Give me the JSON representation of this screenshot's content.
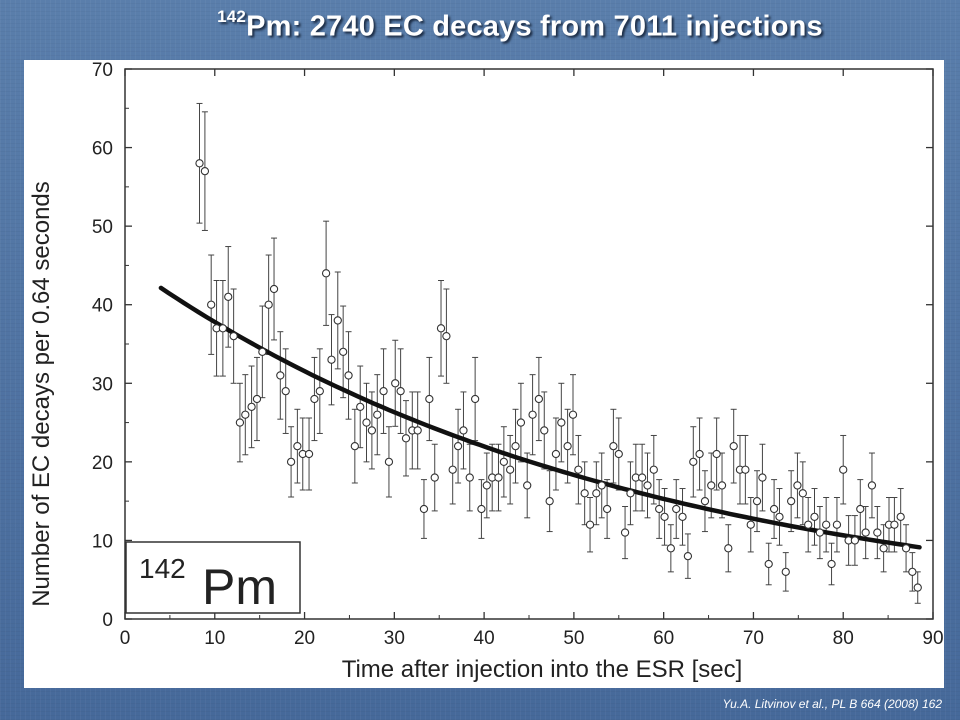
{
  "slide": {
    "title_superscript": "142",
    "title_main": "Pm: 2740 EC decays from 7011 injections",
    "citation": "Yu.A. Litvinov et al., PL B 664 (2008) 162"
  },
  "chart_data": {
    "type": "scatter",
    "xlabel": "Time after injection into the ESR [sec]",
    "ylabel": "Number of EC decays per 0.64 seconds",
    "xlim": [
      0,
      90
    ],
    "ylim": [
      0,
      70
    ],
    "x_ticks": [
      0,
      10,
      20,
      30,
      40,
      50,
      60,
      70,
      80,
      90
    ],
    "y_ticks": [
      0,
      10,
      20,
      30,
      40,
      50,
      60,
      70
    ],
    "inset_label": {
      "mass_number": "142",
      "element": "Pm"
    },
    "grid": false,
    "colors": {
      "points_fill": "#ffffff",
      "points_stroke": "#333333",
      "fit_line": "#111111",
      "slide_background": "#4d6f9c"
    },
    "series": [
      {
        "values_xy": [
          [
            8.3,
            58
          ],
          [
            8.9,
            57
          ],
          [
            9.6,
            40
          ],
          [
            10.2,
            37
          ],
          [
            10.9,
            37
          ],
          [
            11.5,
            41
          ],
          [
            12.1,
            36
          ],
          [
            12.8,
            25
          ],
          [
            13.4,
            26
          ],
          [
            14.1,
            27
          ],
          [
            14.7,
            28
          ],
          [
            15.3,
            34
          ],
          [
            16.0,
            40
          ],
          [
            16.6,
            42
          ],
          [
            17.3,
            31
          ],
          [
            17.9,
            29
          ],
          [
            18.5,
            20
          ],
          [
            19.2,
            22
          ],
          [
            19.8,
            21
          ],
          [
            20.5,
            21
          ],
          [
            21.1,
            28
          ],
          [
            21.7,
            29
          ],
          [
            22.4,
            44
          ],
          [
            23.0,
            33
          ],
          [
            23.7,
            38
          ],
          [
            24.3,
            34
          ],
          [
            24.9,
            31
          ],
          [
            25.6,
            22
          ],
          [
            26.2,
            27
          ],
          [
            26.9,
            25
          ],
          [
            27.5,
            24
          ],
          [
            28.1,
            26
          ],
          [
            28.8,
            29
          ],
          [
            29.4,
            20
          ],
          [
            30.1,
            30
          ],
          [
            30.7,
            29
          ],
          [
            31.3,
            23
          ],
          [
            32.0,
            24
          ],
          [
            32.6,
            24
          ],
          [
            33.3,
            14
          ],
          [
            33.9,
            28
          ],
          [
            34.5,
            18
          ],
          [
            35.2,
            37
          ],
          [
            35.8,
            36
          ],
          [
            36.5,
            19
          ],
          [
            37.1,
            22
          ],
          [
            37.7,
            24
          ],
          [
            38.4,
            18
          ],
          [
            39.0,
            28
          ],
          [
            39.7,
            14
          ],
          [
            40.3,
            17
          ],
          [
            40.9,
            18
          ],
          [
            41.6,
            18
          ],
          [
            42.2,
            20
          ],
          [
            42.9,
            19
          ],
          [
            43.5,
            22
          ],
          [
            44.1,
            25
          ],
          [
            44.8,
            17
          ],
          [
            45.4,
            26
          ],
          [
            46.1,
            28
          ],
          [
            46.7,
            24
          ],
          [
            47.3,
            15
          ],
          [
            48.0,
            21
          ],
          [
            48.6,
            25
          ],
          [
            49.3,
            22
          ],
          [
            49.9,
            26
          ],
          [
            50.5,
            19
          ],
          [
            51.2,
            16
          ],
          [
            51.8,
            12
          ],
          [
            52.5,
            16
          ],
          [
            53.1,
            17
          ],
          [
            53.7,
            14
          ],
          [
            54.4,
            22
          ],
          [
            55.0,
            21
          ],
          [
            55.7,
            11
          ],
          [
            56.3,
            16
          ],
          [
            56.9,
            18
          ],
          [
            57.6,
            18
          ],
          [
            58.2,
            17
          ],
          [
            58.9,
            19
          ],
          [
            59.5,
            14
          ],
          [
            60.1,
            13
          ],
          [
            60.8,
            9
          ],
          [
            61.4,
            14
          ],
          [
            62.1,
            13
          ],
          [
            62.7,
            8
          ],
          [
            63.3,
            20
          ],
          [
            64.0,
            21
          ],
          [
            64.6,
            15
          ],
          [
            65.3,
            17
          ],
          [
            65.9,
            21
          ],
          [
            66.5,
            17
          ],
          [
            67.2,
            9
          ],
          [
            67.8,
            22
          ],
          [
            68.5,
            19
          ],
          [
            69.1,
            19
          ],
          [
            69.7,
            12
          ],
          [
            70.4,
            15
          ],
          [
            71.0,
            18
          ],
          [
            71.7,
            7
          ],
          [
            72.3,
            14
          ],
          [
            72.9,
            13
          ],
          [
            73.6,
            6
          ],
          [
            74.2,
            15
          ],
          [
            74.9,
            17
          ],
          [
            75.5,
            16
          ],
          [
            76.1,
            12
          ],
          [
            76.8,
            13
          ],
          [
            77.4,
            11
          ],
          [
            78.1,
            12
          ],
          [
            78.7,
            7
          ],
          [
            79.3,
            12
          ],
          [
            80.0,
            19
          ],
          [
            80.6,
            10
          ],
          [
            81.3,
            10
          ],
          [
            81.9,
            14
          ],
          [
            82.5,
            11
          ],
          [
            83.2,
            17
          ],
          [
            83.8,
            11
          ],
          [
            84.5,
            9
          ],
          [
            85.1,
            12
          ],
          [
            85.7,
            12
          ],
          [
            86.4,
            13
          ],
          [
            87.0,
            9
          ],
          [
            87.7,
            6
          ],
          [
            88.3,
            4
          ]
        ]
      }
    ],
    "fit_curve": {
      "form": "A*exp(-lambda*t)",
      "A": 45.3,
      "lambda": 0.0181,
      "x_range": [
        4,
        88.5
      ]
    }
  }
}
